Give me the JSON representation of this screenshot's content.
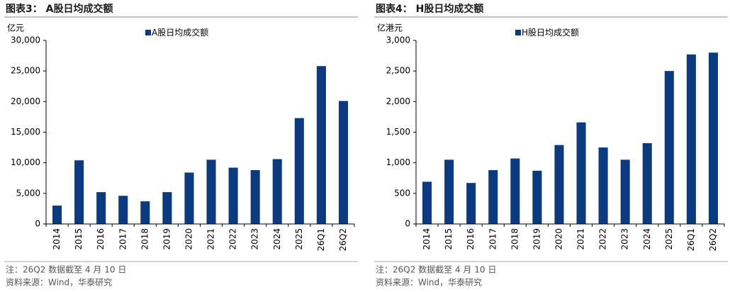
{
  "chart_data": [
    {
      "type": "bar",
      "title": "图表3：  A股日均成交额",
      "y_label": "亿元",
      "categories": [
        "2014",
        "2015",
        "2016",
        "2017",
        "2018",
        "2019",
        "2020",
        "2021",
        "2022",
        "2023",
        "2024",
        "2025",
        "26Q1",
        "26Q2"
      ],
      "series": [
        {
          "name": "A股日均成交额",
          "color": "#0b3a7e",
          "values": [
            3000,
            10400,
            5200,
            4600,
            3700,
            5200,
            8400,
            10500,
            9200,
            8800,
            10600,
            17300,
            25800,
            20100
          ]
        }
      ],
      "ylim": [
        0,
        30000
      ],
      "yticks": [
        0,
        {
          "value": 5000,
          "label": "5,000"
        },
        {
          "value": 10000,
          "label": "10,000"
        },
        {
          "value": 15000,
          "label": "15,000"
        },
        {
          "value": 20000,
          "label": "20,000"
        },
        {
          "value": 25000,
          "label": "25,000"
        },
        {
          "value": 30000,
          "label": "30,000"
        }
      ],
      "grid": false,
      "note": "注：26Q2 数据截至 4 月 10 日",
      "source": "资料来源：Wind，华泰研究"
    },
    {
      "type": "bar",
      "title": "图表4：  H股日均成交额",
      "y_label": "亿港元",
      "categories": [
        "2014",
        "2015",
        "2016",
        "2017",
        "2018",
        "2019",
        "2020",
        "2021",
        "2022",
        "2023",
        "2024",
        "2025",
        "26Q1",
        "26Q2"
      ],
      "series": [
        {
          "name": "H股日均成交额",
          "color": "#0b3a7e",
          "values": [
            690,
            1050,
            670,
            880,
            1070,
            870,
            1290,
            1660,
            1250,
            1050,
            1320,
            2500,
            2770,
            2800
          ]
        }
      ],
      "ylim": [
        0,
        3000
      ],
      "yticks": [
        0,
        500,
        {
          "value": 1000,
          "label": "1,000"
        },
        {
          "value": 1500,
          "label": "1,500"
        },
        {
          "value": 2000,
          "label": "2,000"
        },
        {
          "value": 2500,
          "label": "2,500"
        },
        {
          "value": 3000,
          "label": "3,000"
        }
      ],
      "grid": false,
      "note": "注：26Q2 数据截至 4 月 10 日",
      "source": "资料来源：Wind，华泰研究"
    }
  ]
}
